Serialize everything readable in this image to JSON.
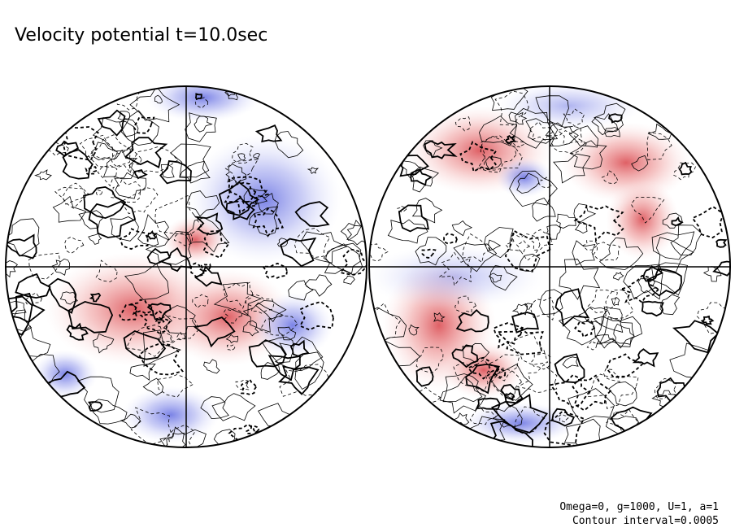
{
  "header": {
    "title": "Velocity potential t=10.0sec"
  },
  "footer": {
    "lines": [
      "Omega=0, g=1000, U=1, a=1",
      "Contour interval=0.0005"
    ]
  }
}
